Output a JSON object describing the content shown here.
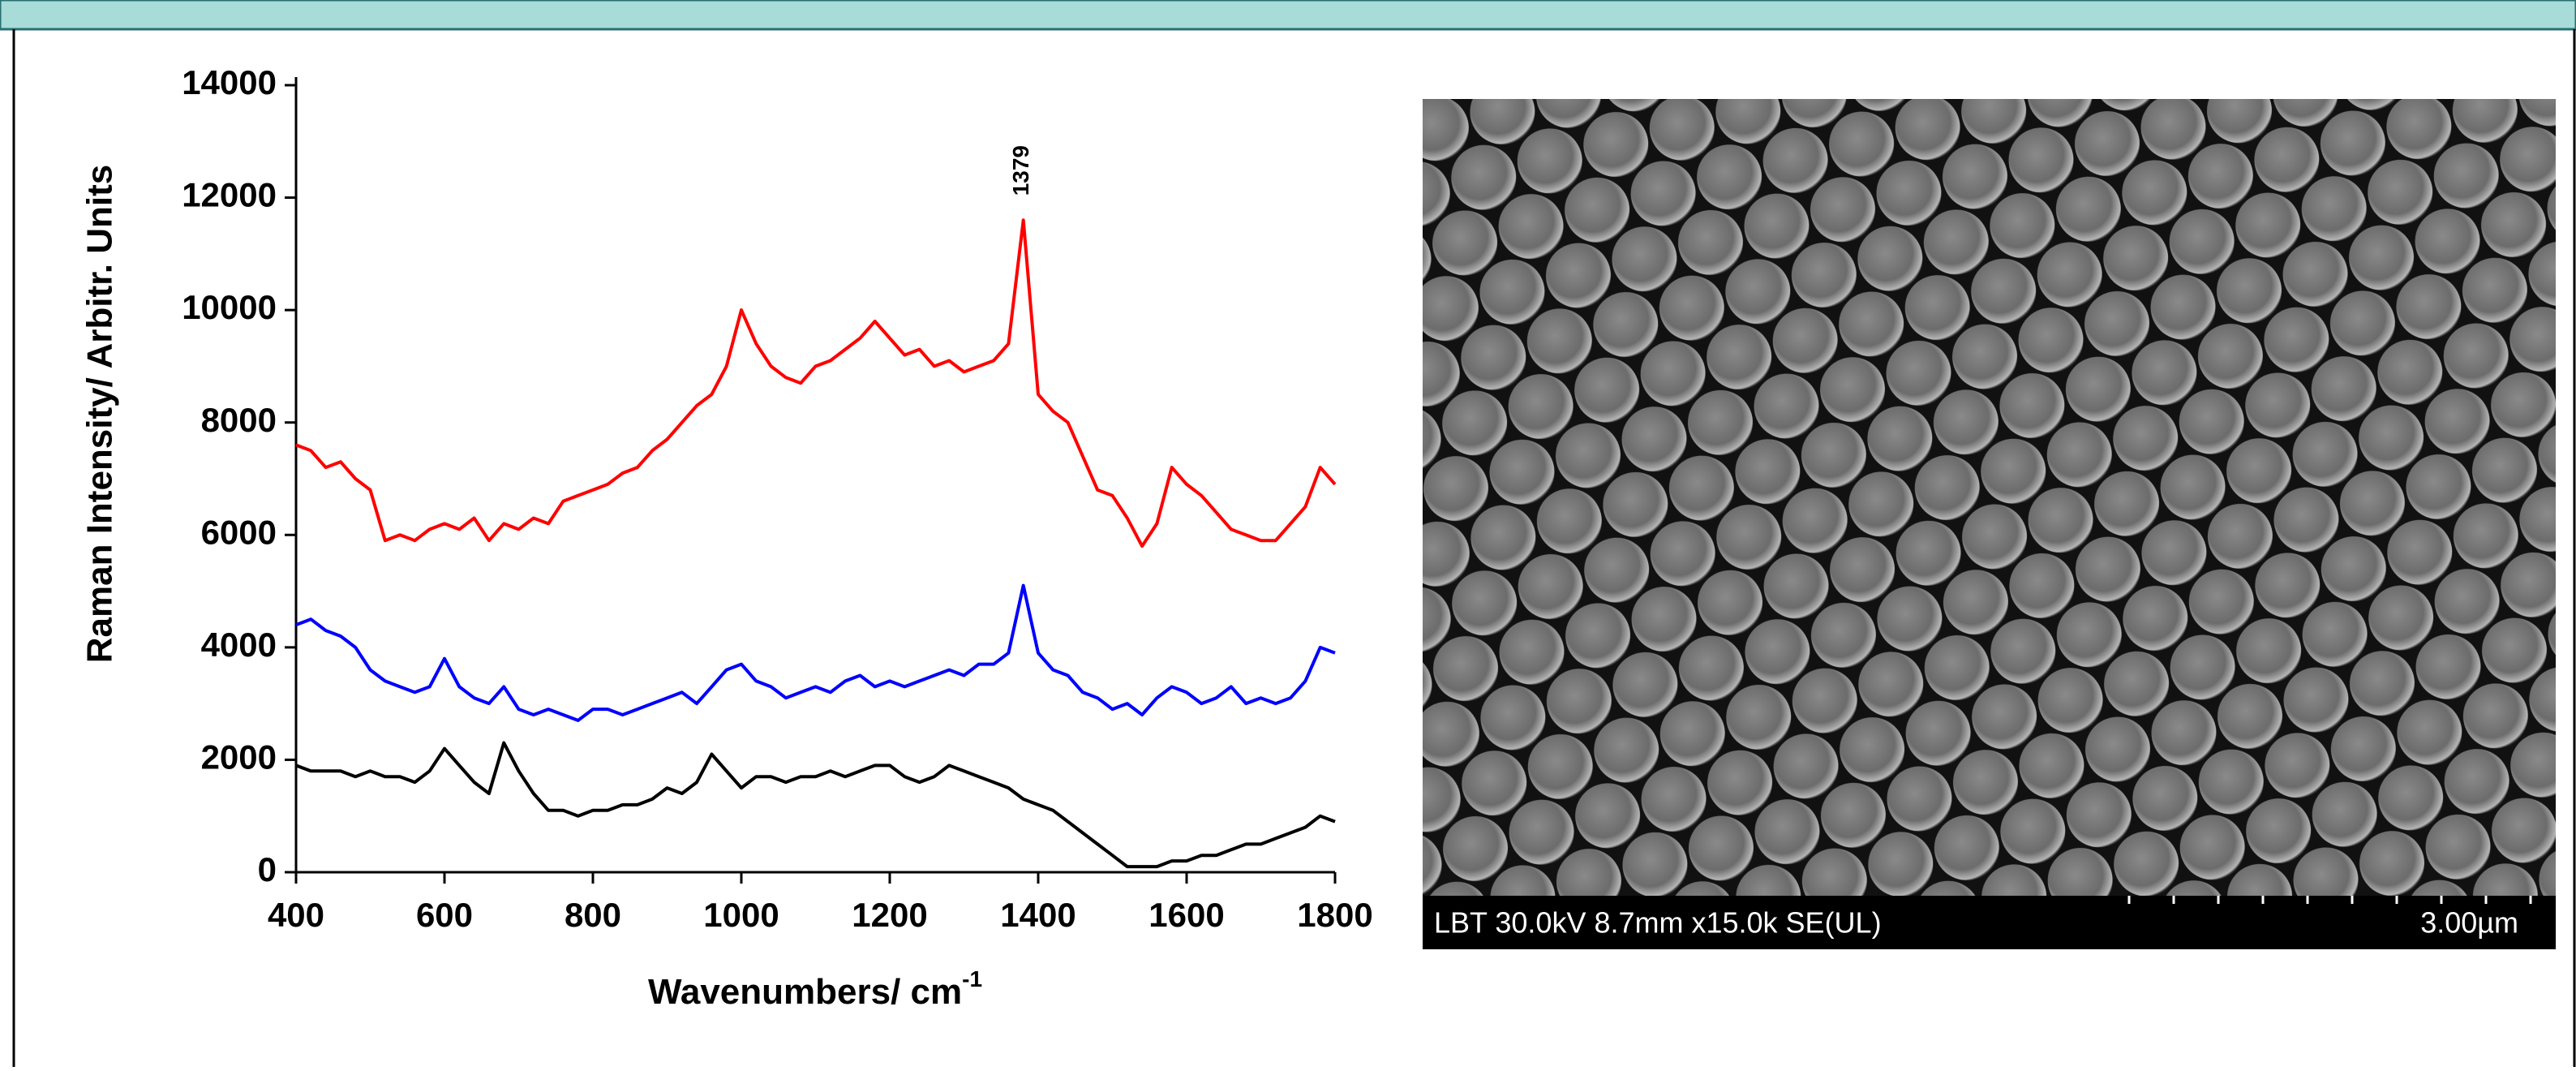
{
  "chart_data": {
    "type": "line",
    "ylabel": "Raman Intensity/ Arbitr. Units",
    "xlabel": {
      "text": "Wavenumbers/ cm",
      "superscript": "-1"
    },
    "x": [
      400,
      420,
      440,
      460,
      480,
      500,
      520,
      540,
      560,
      580,
      600,
      620,
      640,
      660,
      680,
      700,
      720,
      740,
      760,
      780,
      800,
      820,
      840,
      860,
      880,
      900,
      920,
      940,
      960,
      980,
      1000,
      1020,
      1040,
      1060,
      1080,
      1100,
      1120,
      1140,
      1160,
      1180,
      1200,
      1220,
      1240,
      1260,
      1280,
      1300,
      1320,
      1340,
      1360,
      1380,
      1400,
      1420,
      1440,
      1460,
      1480,
      1500,
      1520,
      1540,
      1560,
      1580,
      1600,
      1620,
      1640,
      1660,
      1680,
      1700,
      1720,
      1740,
      1760,
      1780,
      1800
    ],
    "series": [
      {
        "color": "#ff0000",
        "values": [
          7600,
          7500,
          7200,
          7300,
          7000,
          6800,
          5900,
          6000,
          5900,
          6100,
          6200,
          6100,
          6300,
          5900,
          6200,
          6100,
          6300,
          6200,
          6600,
          6700,
          6800,
          6900,
          7100,
          7200,
          7500,
          7700,
          8000,
          8300,
          8500,
          9000,
          10000,
          9400,
          9000,
          8800,
          8700,
          9000,
          9100,
          9300,
          9500,
          9800,
          9500,
          9200,
          9300,
          9000,
          9100,
          8900,
          9000,
          9100,
          9400,
          11600,
          8500,
          8200,
          8000,
          7400,
          6800,
          6700,
          6300,
          5800,
          6200,
          7200,
          6900,
          6700,
          6400,
          6100,
          6000,
          5900,
          5900,
          6200,
          6500,
          7200,
          6900
        ]
      },
      {
        "color": "#0000ff",
        "values": [
          4400,
          4500,
          4300,
          4200,
          4000,
          3600,
          3400,
          3300,
          3200,
          3300,
          3800,
          3300,
          3100,
          3000,
          3300,
          2900,
          2800,
          2900,
          2800,
          2700,
          2900,
          2900,
          2800,
          2900,
          3000,
          3100,
          3200,
          3000,
          3300,
          3600,
          3700,
          3400,
          3300,
          3100,
          3200,
          3300,
          3200,
          3400,
          3500,
          3300,
          3400,
          3300,
          3400,
          3500,
          3600,
          3500,
          3700,
          3700,
          3900,
          5100,
          3900,
          3600,
          3500,
          3200,
          3100,
          2900,
          3000,
          2800,
          3100,
          3300,
          3200,
          3000,
          3100,
          3300,
          3000,
          3100,
          3000,
          3100,
          3400,
          4000,
          3900
        ]
      },
      {
        "color": "#000000",
        "values": [
          1900,
          1800,
          1800,
          1800,
          1700,
          1800,
          1700,
          1700,
          1600,
          1800,
          2200,
          1900,
          1600,
          1400,
          2300,
          1800,
          1400,
          1100,
          1100,
          1000,
          1100,
          1100,
          1200,
          1200,
          1300,
          1500,
          1400,
          1600,
          2100,
          1800,
          1500,
          1700,
          1700,
          1600,
          1700,
          1700,
          1800,
          1700,
          1800,
          1900,
          1900,
          1700,
          1600,
          1700,
          1900,
          1800,
          1700,
          1600,
          1500,
          1300,
          1200,
          1100,
          900,
          700,
          500,
          300,
          100,
          100,
          100,
          200,
          200,
          300,
          300,
          400,
          500,
          500,
          600,
          700,
          800,
          1000,
          900
        ]
      }
    ],
    "annotations": [
      {
        "x": 1379,
        "y": 11600
      }
    ],
    "xlim": [
      400,
      1800
    ],
    "ylim": [
      0,
      14000
    ],
    "xticks": [
      400,
      600,
      800,
      1000,
      1200,
      1400,
      1600,
      1800
    ],
    "yticks": [
      0,
      2000,
      4000,
      6000,
      8000,
      10000,
      12000,
      14000
    ]
  },
  "image": {
    "caption": "LBT 30.0kV 8.7mm x15.0k SE(UL)",
    "scale_bar": "3.00µm"
  }
}
